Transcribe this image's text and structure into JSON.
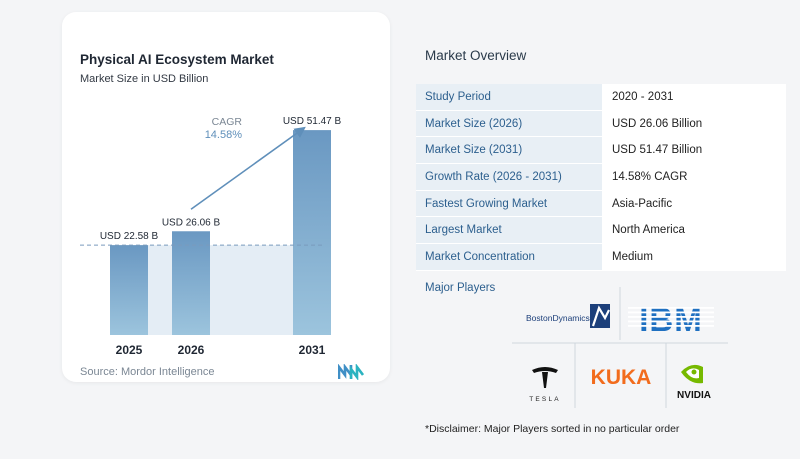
{
  "chart_data": {
    "type": "bar",
    "title": "Physical AI Ecosystem Market",
    "subtitle": "Market Size in USD Billion",
    "categories": [
      "2025",
      "2026",
      "2031"
    ],
    "values": [
      22.58,
      26.06,
      51.47
    ],
    "value_labels": [
      "USD 22.58 B",
      "USD 26.06 B",
      "USD 51.47 B"
    ],
    "cagr_label": "CAGR",
    "cagr_value": "14.58%",
    "source": "Source: Mordor Intelligence",
    "bar_color": "#6f9cc4",
    "ylim": [
      0,
      52
    ]
  },
  "overview": {
    "title": "Market Overview",
    "rows": [
      {
        "label": "Study Period",
        "value": "2020 - 2031"
      },
      {
        "label": "Market Size (2026)",
        "value": "USD 26.06 Billion"
      },
      {
        "label": "Market Size (2031)",
        "value": "USD 51.47 Billion"
      },
      {
        "label": "Growth Rate (2026 - 2031)",
        "value": "14.58% CAGR"
      },
      {
        "label": "Fastest Growing Market",
        "value": "Asia-Pacific"
      },
      {
        "label": "Largest Market",
        "value": "North America"
      },
      {
        "label": "Market Concentration",
        "value": "Medium"
      }
    ]
  },
  "players": {
    "title": "Major Players",
    "logos": {
      "boston_dynamics": "BostonDynamics",
      "ibm": "IBM",
      "tesla": "TESLA",
      "kuka": "KUKA",
      "nvidia": "NVIDIA"
    }
  },
  "disclaimer": "*Disclaimer: Major Players sorted in no particular order"
}
